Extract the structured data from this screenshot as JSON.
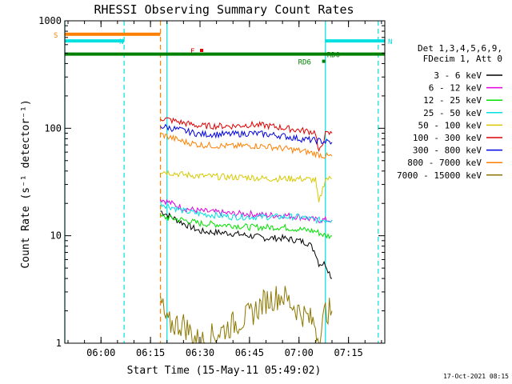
{
  "chart_data": {
    "type": "line",
    "title": "RHESSI Observing Summary Count Rates",
    "xlabel": "Start Time (15-May-11 05:49:02)",
    "ylabel": "Count Rate (s⁻¹ detector⁻¹)",
    "y_scale": "log",
    "ylim": [
      1,
      1000
    ],
    "xlim": [
      "05:49:02",
      "07:26:00"
    ],
    "x_ticks": [
      "06:00",
      "06:15",
      "06:30",
      "06:45",
      "07:00",
      "07:15"
    ],
    "y_ticks": [
      "1",
      "10",
      "100",
      "1000"
    ],
    "legend_header": [
      "Det 1,3,4,5,6,9,",
      "FDecim 1, Att 0"
    ],
    "legend_position": "right",
    "date_stamp": "17-Oct-2021 08:15",
    "series": [
      {
        "name": "3 - 6 keV",
        "color": "#000000",
        "x": [
          "06:18",
          "06:25",
          "06:30",
          "06:40",
          "06:45",
          "06:50",
          "06:55",
          "07:00",
          "07:03",
          "07:05",
          "07:06",
          "07:08",
          "07:10"
        ],
        "y": [
          17,
          13,
          11,
          10.5,
          10,
          9.5,
          9.5,
          9,
          8.5,
          7,
          5.5,
          5.5,
          4
        ]
      },
      {
        "name": "6 - 12 keV",
        "color": "#e000e0",
        "x": [
          "06:18",
          "06:25",
          "06:30",
          "06:40",
          "06:45",
          "06:50",
          "06:55",
          "07:00",
          "07:05",
          "07:08",
          "07:10"
        ],
        "y": [
          22,
          18,
          17,
          16,
          16,
          15.5,
          15.5,
          15,
          14,
          14,
          14
        ]
      },
      {
        "name": "12 - 25 keV",
        "color": "#00e000",
        "x": [
          "06:18",
          "06:25",
          "06:30",
          "06:40",
          "06:45",
          "06:50",
          "06:55",
          "07:00",
          "07:05",
          "07:08",
          "07:10"
        ],
        "y": [
          15,
          14,
          13,
          12.5,
          12,
          12,
          12,
          11.5,
          11,
          10,
          10
        ]
      },
      {
        "name": "25 - 50 keV",
        "color": "#00e0e0",
        "x": [
          "06:18",
          "06:25",
          "06:30",
          "06:40",
          "06:45",
          "06:50",
          "06:55",
          "07:00",
          "07:05",
          "07:08",
          "07:10"
        ],
        "y": [
          20,
          17,
          16,
          15,
          15,
          15,
          15,
          15,
          14,
          14,
          14
        ]
      },
      {
        "name": "50 - 100 keV",
        "color": "#d8c800",
        "x": [
          "06:18",
          "06:25",
          "06:30",
          "06:40",
          "06:45",
          "06:50",
          "06:55",
          "07:00",
          "07:05",
          "07:06",
          "07:08",
          "07:10"
        ],
        "y": [
          40,
          37,
          36,
          35,
          35,
          34,
          34,
          34,
          33,
          20,
          34,
          34
        ]
      },
      {
        "name": "100 - 300 keV",
        "color": "#e00000",
        "x": [
          "06:18",
          "06:25",
          "06:30",
          "06:40",
          "06:45",
          "06:50",
          "06:55",
          "07:00",
          "07:05",
          "07:06",
          "07:08",
          "07:10"
        ],
        "y": [
          125,
          112,
          105,
          105,
          108,
          106,
          101,
          96,
          92,
          58,
          88,
          90
        ]
      },
      {
        "name": "300 - 800 keV",
        "color": "#0000e0",
        "x": [
          "06:18",
          "06:25",
          "06:30",
          "06:40",
          "06:45",
          "06:50",
          "06:55",
          "07:00",
          "07:05",
          "07:08",
          "07:10"
        ],
        "y": [
          105,
          95,
          88,
          88,
          90,
          88,
          85,
          80,
          77,
          75,
          74
        ]
      },
      {
        "name": "800 - 7000 keV",
        "color": "#ff8000",
        "x": [
          "06:18",
          "06:25",
          "06:30",
          "06:40",
          "06:45",
          "06:50",
          "06:55",
          "07:00",
          "07:05",
          "07:08",
          "07:10"
        ],
        "y": [
          88,
          75,
          70,
          68,
          69,
          68,
          65,
          62,
          58,
          55,
          55
        ]
      },
      {
        "name": "7000 - 15000 keV",
        "color": "#8c7800",
        "x": [
          "06:18",
          "06:20",
          "06:25",
          "06:30",
          "06:40",
          "06:45",
          "06:50",
          "06:55",
          "07:00",
          "07:05",
          "07:06",
          "07:08",
          "07:10"
        ],
        "y": [
          2.5,
          1.5,
          1.5,
          1,
          1.5,
          1.8,
          2.5,
          2.8,
          2,
          1.5,
          1,
          2,
          2
        ]
      }
    ],
    "state_bars": [
      {
        "label": "S",
        "color": "#ff8000",
        "x_start": "05:49:02",
        "x_end": "06:18",
        "y": 750
      },
      {
        "label": "N",
        "color": "#00e0e0",
        "x_start": "05:49:02",
        "x_end": "06:07",
        "y": 650
      },
      {
        "label": "N",
        "color": "#00e0e0",
        "x_start": "07:08",
        "x_end": "07:26",
        "y": 650
      },
      {
        "label": "F",
        "color": "#e00000",
        "x_start": "06:30",
        "x_end": "06:31",
        "y": 530
      },
      {
        "label": "RD0",
        "color": "#008000",
        "x_start": "05:49:02",
        "x_end": "07:26",
        "y": 490
      },
      {
        "label": "RD6",
        "color": "#008000",
        "x_start": "07:07",
        "x_end": "07:08",
        "y": 420
      }
    ],
    "vlines": [
      {
        "x": "05:49:02",
        "color": "#00e0e0",
        "style": "solid"
      },
      {
        "x": "06:07",
        "color": "#00e0e0",
        "style": "dashed"
      },
      {
        "x": "06:18",
        "color": "#ff8000",
        "style": "dashed"
      },
      {
        "x": "06:20",
        "color": "#00e0e0",
        "style": "solid"
      },
      {
        "x": "07:08",
        "color": "#00e0e0",
        "style": "solid"
      },
      {
        "x": "07:24",
        "color": "#00e0e0",
        "style": "dashed"
      }
    ]
  }
}
